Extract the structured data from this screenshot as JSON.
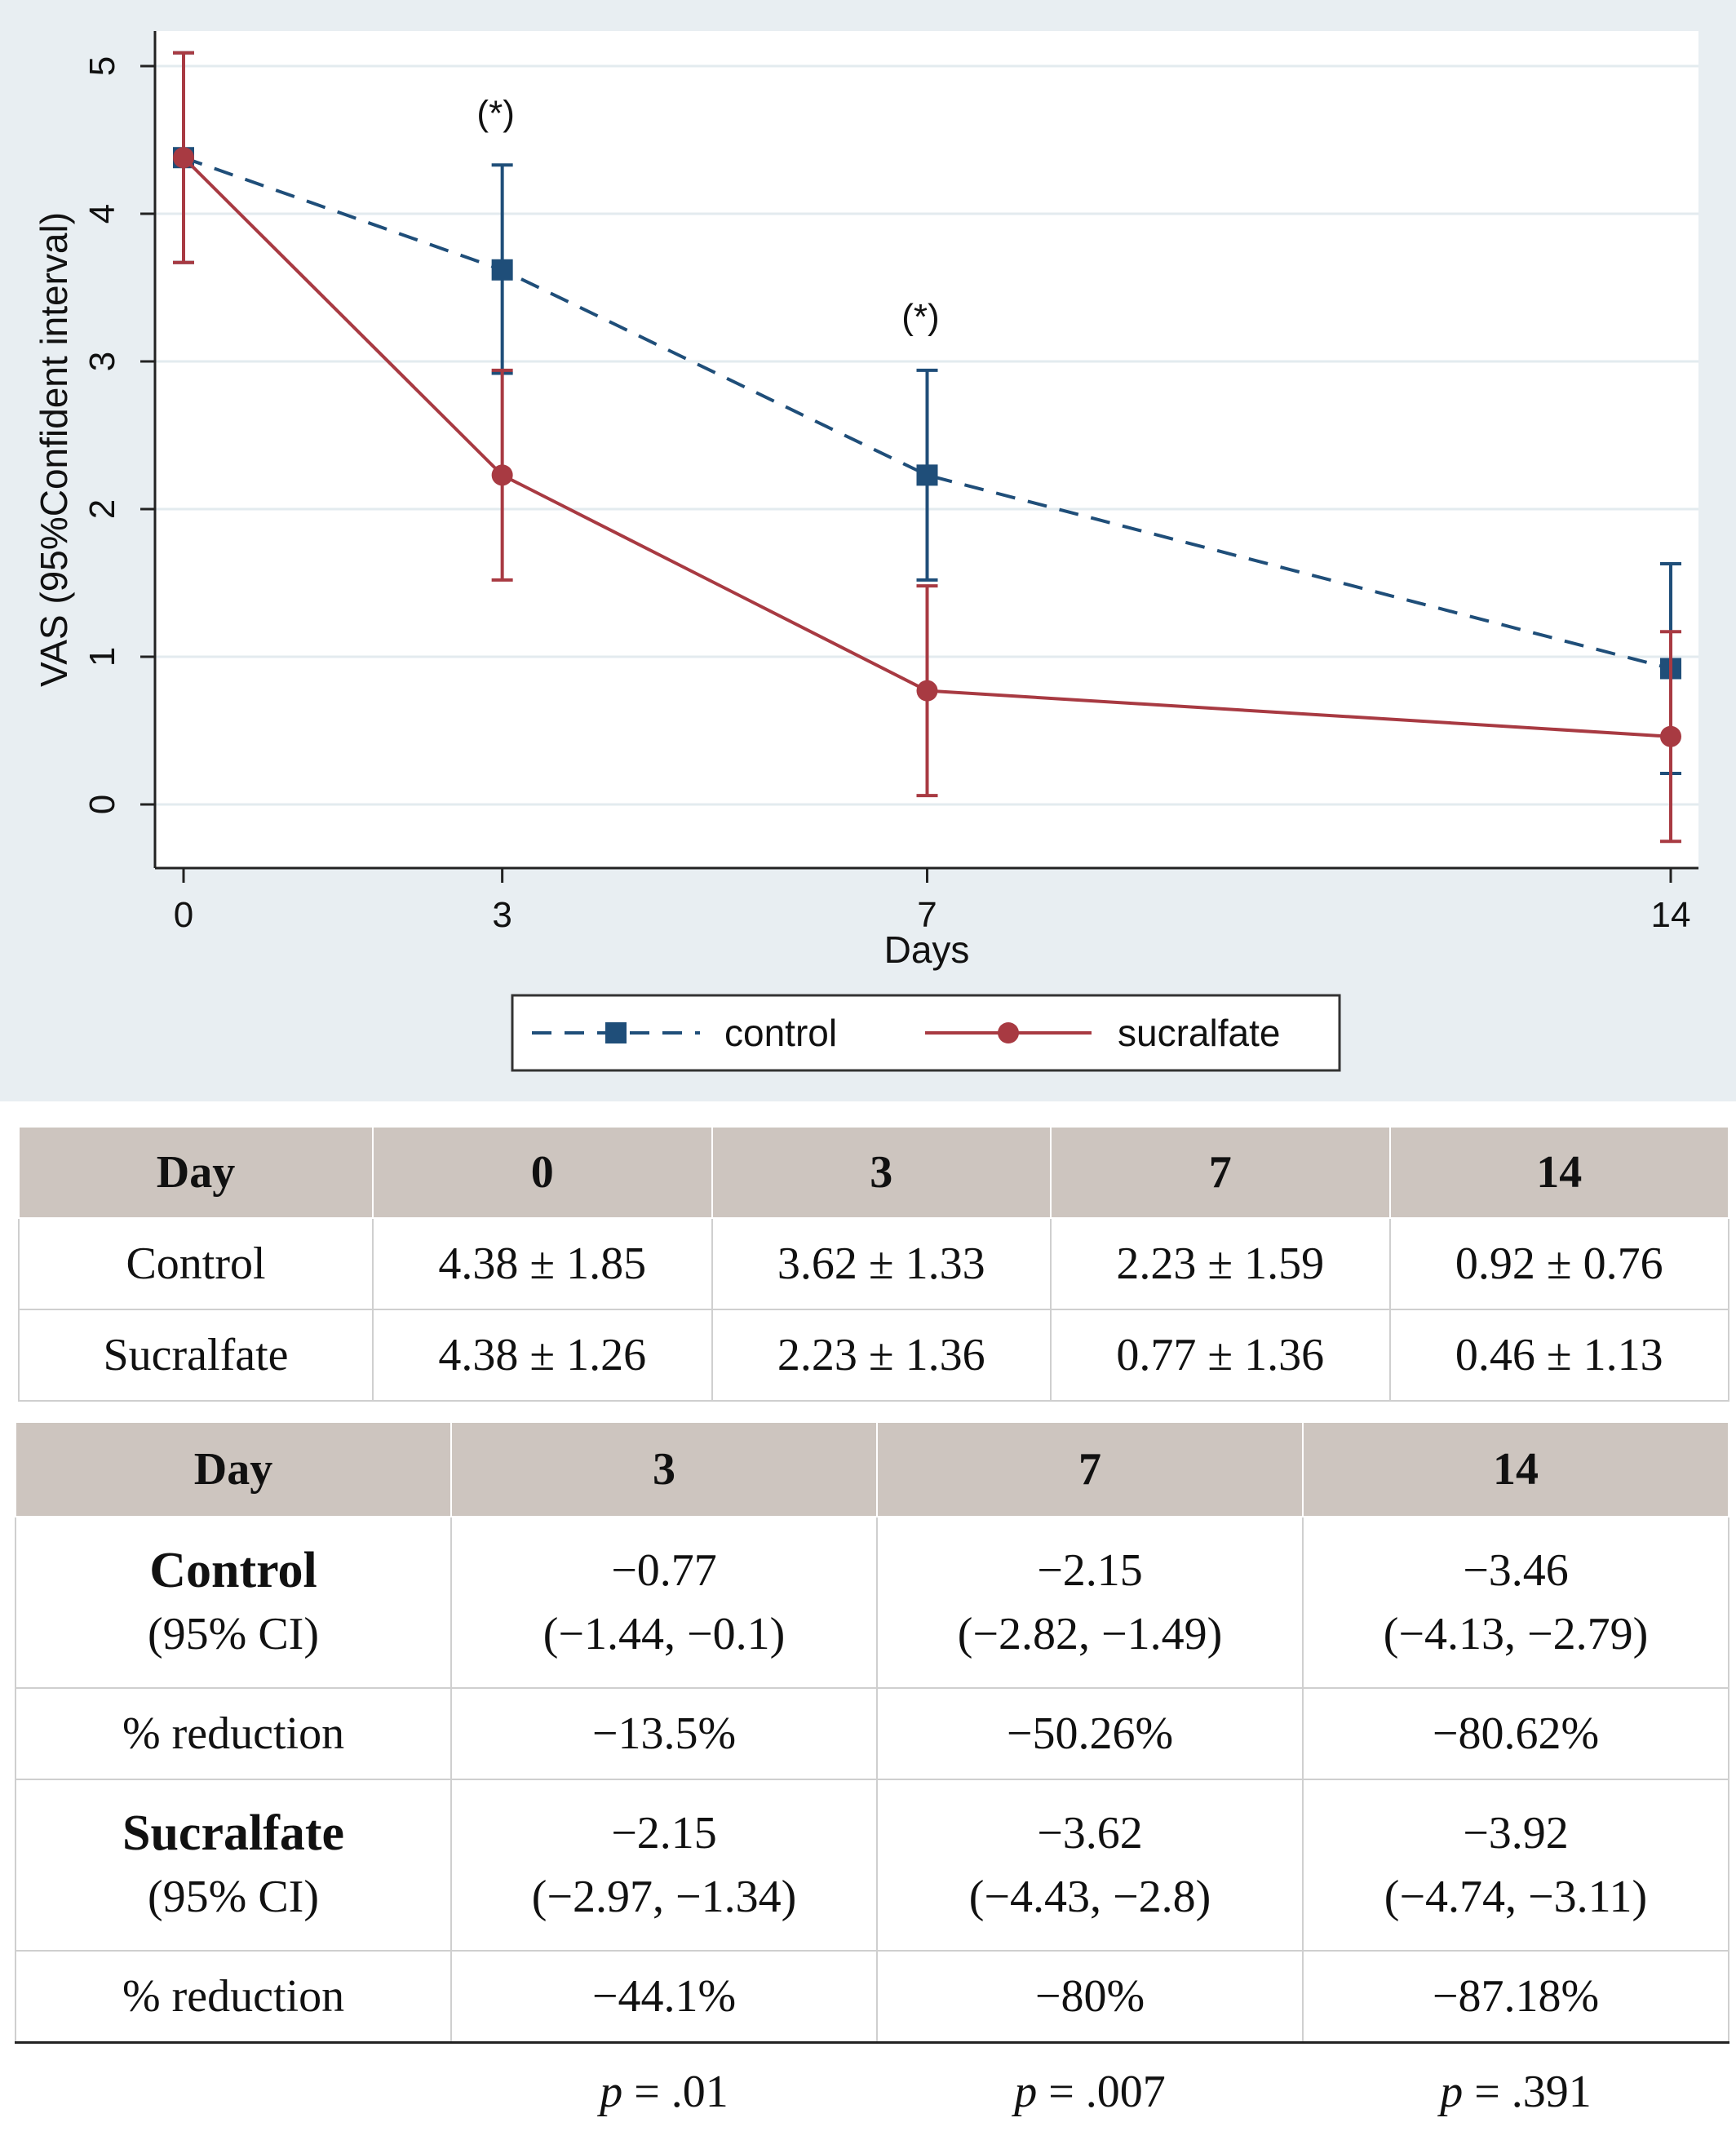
{
  "chart_data": {
    "type": "line",
    "xlabel": "Days",
    "ylabel": "VAS (95%Confident interval)",
    "x": [
      0,
      3,
      7,
      14
    ],
    "x_ticks": [
      "0",
      "3",
      "7",
      "14"
    ],
    "y_ticks": [
      "0",
      "1",
      "2",
      "3",
      "4",
      "5"
    ],
    "xlim": [
      0,
      14
    ],
    "ylim": [
      -0.4,
      5.2
    ],
    "grid": "horizontal",
    "legend_position": "bottom",
    "series": [
      {
        "name": "control",
        "color": "#1f4e79",
        "style": "dashed",
        "marker": "square",
        "values": [
          4.38,
          3.62,
          2.23,
          0.92
        ],
        "ci_low": [
          3.67,
          2.92,
          1.52,
          0.21
        ],
        "ci_high": [
          5.09,
          4.33,
          2.94,
          1.63
        ]
      },
      {
        "name": "sucralfate",
        "color": "#a83a42",
        "style": "solid",
        "marker": "circle",
        "values": [
          4.38,
          2.23,
          0.77,
          0.46
        ],
        "ci_low": [
          3.67,
          1.52,
          0.06,
          -0.25
        ],
        "ci_high": [
          5.09,
          2.94,
          1.48,
          1.17
        ]
      }
    ],
    "annotations": [
      {
        "x": 3,
        "y": 4.6,
        "text": "(*)"
      },
      {
        "x": 7,
        "y": 3.22,
        "text": "(*)"
      }
    ]
  },
  "table1": {
    "header": [
      "Day",
      "0",
      "3",
      "7",
      "14"
    ],
    "rows": [
      [
        "Control",
        "4.38 ± 1.85",
        "3.62 ± 1.33",
        "2.23 ± 1.59",
        "0.92 ± 0.76"
      ],
      [
        "Sucralfate",
        "4.38 ± 1.26",
        "2.23 ± 1.36",
        "0.77 ± 1.36",
        "0.46 ± 1.13"
      ]
    ]
  },
  "table2": {
    "header": [
      "Day",
      "3",
      "7",
      "14"
    ],
    "control": {
      "name": "Control",
      "ci_label": "(95% CI)",
      "change": [
        "−0.77",
        "−2.15",
        "−3.46"
      ],
      "ci": [
        "(−1.44, −0.1)",
        "(−2.82, −1.49)",
        "(−4.13, −2.79)"
      ],
      "reduction_label": "% reduction",
      "reduction": [
        "−13.5%",
        "−50.26%",
        "−80.62%"
      ]
    },
    "sucralfate": {
      "name": "Sucralfate",
      "ci_label": "(95% CI)",
      "change": [
        "−2.15",
        "−3.62",
        "−3.92"
      ],
      "ci": [
        "(−2.97, −1.34)",
        "(−4.43, −2.8)",
        "(−4.74, −3.11)"
      ],
      "reduction_label": "% reduction",
      "reduction": [
        "−44.1%",
        "−80%",
        "−87.18%"
      ]
    },
    "p_label": "p",
    "p_values": [
      "= .01",
      "= .007",
      "= .391"
    ]
  }
}
